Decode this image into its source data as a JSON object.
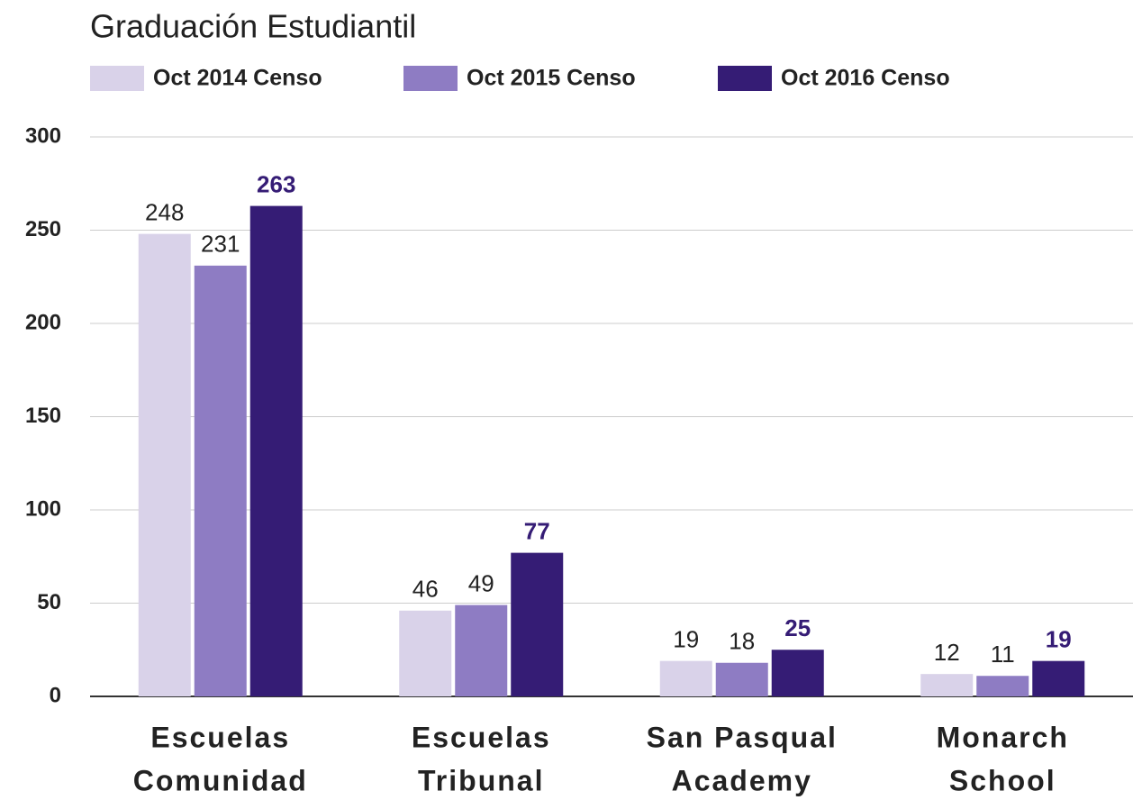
{
  "chart_data": {
    "type": "bar",
    "title": "Graduación Estudiantil",
    "categories": [
      [
        "Escuelas",
        "Comunidad"
      ],
      [
        "Escuelas",
        "Tribunal"
      ],
      [
        "San Pasqual",
        "Academy"
      ],
      [
        "Monarch",
        "School"
      ]
    ],
    "series": [
      {
        "name": "Oct 2014 Censo",
        "color": "#d9d2e9",
        "values": [
          248,
          46,
          19,
          12
        ]
      },
      {
        "name": "Oct 2015 Censo",
        "color": "#8e7cc3",
        "values": [
          231,
          49,
          18,
          11
        ]
      },
      {
        "name": "Oct 2016 Censo",
        "color": "#351c75",
        "values": [
          263,
          77,
          25,
          19
        ]
      }
    ],
    "ylim": [
      0,
      300
    ],
    "yticks": [
      0,
      50,
      100,
      150,
      200,
      250,
      300
    ],
    "grid": true,
    "legend": "top"
  }
}
